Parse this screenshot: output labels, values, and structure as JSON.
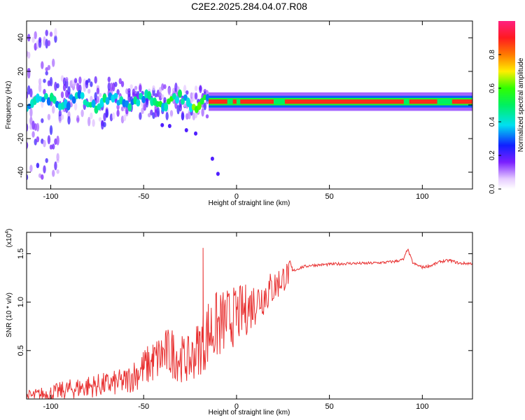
{
  "title": "C2E2.2025.284.04.07.R08",
  "chart_data": [
    {
      "type": "heatmap",
      "name": "spectrogram",
      "xlabel": "Height of straight line (km)",
      "ylabel": "Frequency (Hz)",
      "xlim": [
        -113,
        127
      ],
      "ylim": [
        -50,
        50
      ],
      "xticks": [
        -100,
        -50,
        0,
        50,
        100
      ],
      "yticks": [
        -40,
        -20,
        0,
        20,
        40
      ],
      "colorbar": {
        "label": "Normalized spectral amplitude",
        "range": [
          0,
          1
        ],
        "ticks": [
          "0.0",
          "0.2",
          "0.4",
          "0.6",
          "0.8"
        ]
      },
      "ridge": {
        "description": "dominant frequency band centered near +2 Hz; scattered/noisy below about -15 km, narrow and continuous above",
        "center_hz": 2,
        "transition_km": -15
      }
    },
    {
      "type": "line",
      "name": "snr",
      "xlabel": "Height of straight line (km)",
      "ylabel": "SNR (10 * v/v)",
      "multiplier": "(x10",
      "multiplier_exp": "4",
      "xlim": [
        -113,
        127
      ],
      "ylim": [
        0,
        1.72
      ],
      "xticks": [
        -100,
        -50,
        0,
        50,
        100
      ],
      "yticks": [
        "0.5",
        "1.0",
        "1.5"
      ],
      "color": "#e83030",
      "series": [
        {
          "name": "SNR",
          "x": [
            -113,
            -100,
            -90,
            -80,
            -70,
            -60,
            -50,
            -45,
            -40,
            -35,
            -30,
            -25,
            -20,
            -18,
            -15,
            -10,
            -5,
            0,
            5,
            10,
            15,
            20,
            25,
            30,
            35,
            40,
            50,
            60,
            70,
            80,
            85,
            90,
            92,
            95,
            100,
            105,
            110,
            115,
            120,
            127
          ],
          "y": [
            0.02,
            0.06,
            0.1,
            0.13,
            0.15,
            0.18,
            0.32,
            0.38,
            0.45,
            0.48,
            0.42,
            0.4,
            0.55,
            0.6,
            0.7,
            0.75,
            0.82,
            0.86,
            0.92,
            1.0,
            1.08,
            1.15,
            1.25,
            1.32,
            1.36,
            1.38,
            1.39,
            1.4,
            1.4,
            1.41,
            1.42,
            1.44,
            1.55,
            1.4,
            1.36,
            1.38,
            1.42,
            1.43,
            1.4,
            1.4
          ]
        }
      ]
    }
  ]
}
